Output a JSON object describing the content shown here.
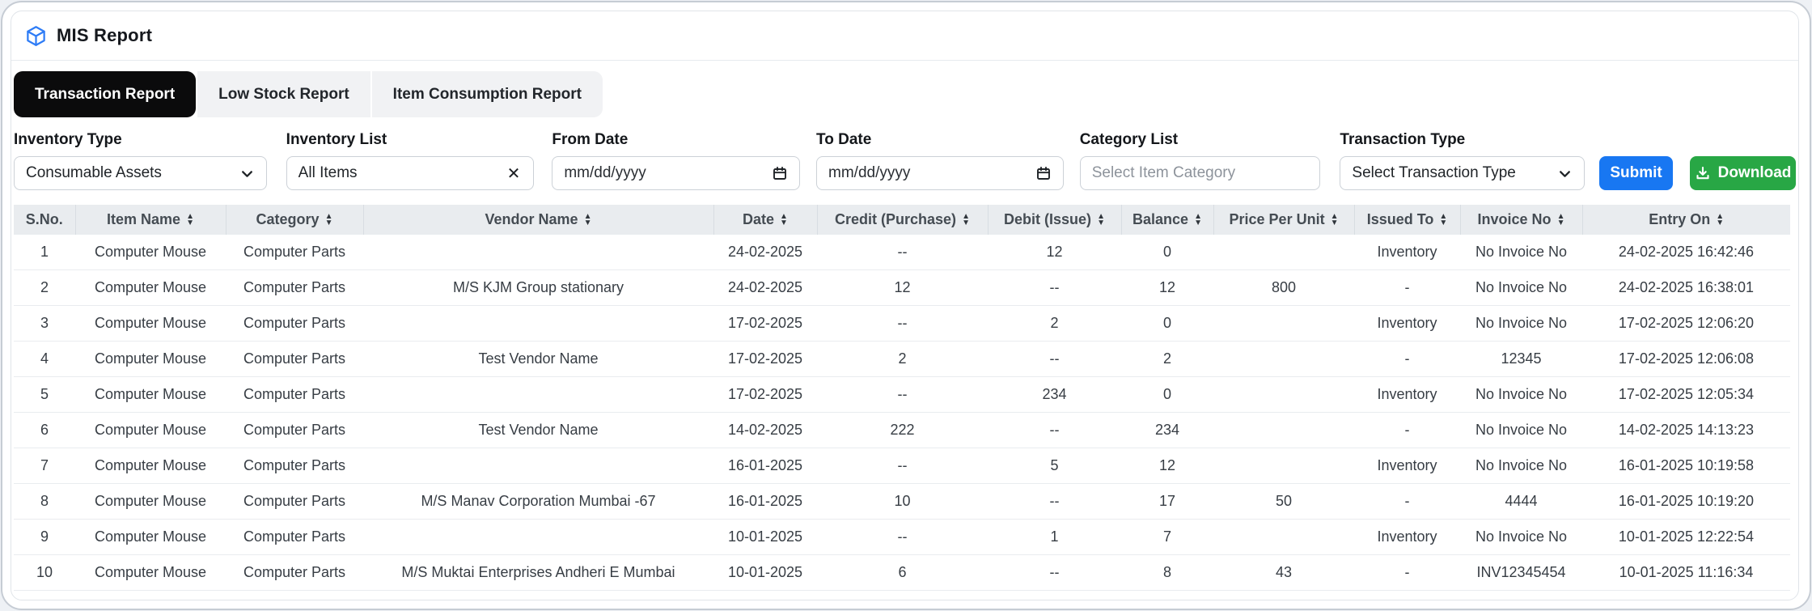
{
  "header": {
    "title": "MIS Report"
  },
  "tabs": [
    {
      "label": "Transaction Report",
      "active": true
    },
    {
      "label": "Low Stock Report",
      "active": false
    },
    {
      "label": "Item Consumption Report",
      "active": false
    }
  ],
  "filters": {
    "inventory_type": {
      "label": "Inventory Type",
      "value": "Consumable Assets"
    },
    "inventory_list": {
      "label": "Inventory List",
      "value": "All Items",
      "clear": "✕"
    },
    "from_date": {
      "label": "From Date",
      "placeholder": "mm/dd/yyyy"
    },
    "to_date": {
      "label": "To Date",
      "placeholder": "mm/dd/yyyy"
    },
    "category_list": {
      "label": "Category List",
      "placeholder": "Select Item Category"
    },
    "transaction_type": {
      "label": "Transaction Type",
      "value": "Select Transaction Type"
    }
  },
  "actions": {
    "submit": "Submit",
    "download": "Download"
  },
  "table": {
    "columns": [
      {
        "label": "S.No.",
        "sortable": false
      },
      {
        "label": "Item Name",
        "sortable": true
      },
      {
        "label": "Category",
        "sortable": true
      },
      {
        "label": "Vendor Name",
        "sortable": true
      },
      {
        "label": "Date",
        "sortable": true
      },
      {
        "label": "Credit (Purchase)",
        "sortable": true
      },
      {
        "label": "Debit (Issue)",
        "sortable": true
      },
      {
        "label": "Balance",
        "sortable": true
      },
      {
        "label": "Price Per Unit",
        "sortable": true
      },
      {
        "label": "Issued To",
        "sortable": true
      },
      {
        "label": "Invoice No",
        "sortable": true
      },
      {
        "label": "Entry On",
        "sortable": true
      }
    ],
    "rows": [
      [
        "1",
        "Computer Mouse",
        "Computer Parts",
        "",
        "24-02-2025",
        "--",
        "12",
        "0",
        "",
        "Inventory",
        "No Invoice No",
        "24-02-2025 16:42:46"
      ],
      [
        "2",
        "Computer Mouse",
        "Computer Parts",
        "M/S KJM Group stationary",
        "24-02-2025",
        "12",
        "--",
        "12",
        "800",
        "-",
        "No Invoice No",
        "24-02-2025 16:38:01"
      ],
      [
        "3",
        "Computer Mouse",
        "Computer Parts",
        "",
        "17-02-2025",
        "--",
        "2",
        "0",
        "",
        "Inventory",
        "No Invoice No",
        "17-02-2025 12:06:20"
      ],
      [
        "4",
        "Computer Mouse",
        "Computer Parts",
        "Test Vendor Name",
        "17-02-2025",
        "2",
        "--",
        "2",
        "",
        "-",
        "12345",
        "17-02-2025 12:06:08"
      ],
      [
        "5",
        "Computer Mouse",
        "Computer Parts",
        "",
        "17-02-2025",
        "--",
        "234",
        "0",
        "",
        "Inventory",
        "No Invoice No",
        "17-02-2025 12:05:34"
      ],
      [
        "6",
        "Computer Mouse",
        "Computer Parts",
        "Test Vendor Name",
        "14-02-2025",
        "222",
        "--",
        "234",
        "",
        "-",
        "No Invoice No",
        "14-02-2025 14:13:23"
      ],
      [
        "7",
        "Computer Mouse",
        "Computer Parts",
        "",
        "16-01-2025",
        "--",
        "5",
        "12",
        "",
        "Inventory",
        "No Invoice No",
        "16-01-2025 10:19:58"
      ],
      [
        "8",
        "Computer Mouse",
        "Computer Parts",
        "M/S Manav Corporation Mumbai -67",
        "16-01-2025",
        "10",
        "--",
        "17",
        "50",
        "-",
        "4444",
        "16-01-2025 10:19:20"
      ],
      [
        "9",
        "Computer Mouse",
        "Computer Parts",
        "",
        "10-01-2025",
        "--",
        "1",
        "7",
        "",
        "Inventory",
        "No Invoice No",
        "10-01-2025 12:22:54"
      ],
      [
        "10",
        "Computer Mouse",
        "Computer Parts",
        "M/S Muktai Enterprises Andheri E Mumbai",
        "10-01-2025",
        "6",
        "--",
        "8",
        "43",
        "-",
        "INV12345454",
        "10-01-2025 11:16:34"
      ]
    ]
  },
  "colors": {
    "accent_blue": "#1877f2",
    "success_green": "#28a745",
    "active_tab_bg": "#0b0b0c",
    "table_header_bg": "#e9ecef",
    "app_icon_blue": "#2e7cf6"
  },
  "icons": {
    "app": "cube-icon",
    "sort": "sort-arrows-icon",
    "calendar": "calendar-icon",
    "chevron": "chevron-down-icon",
    "clear": "close-icon",
    "download": "download-icon"
  }
}
